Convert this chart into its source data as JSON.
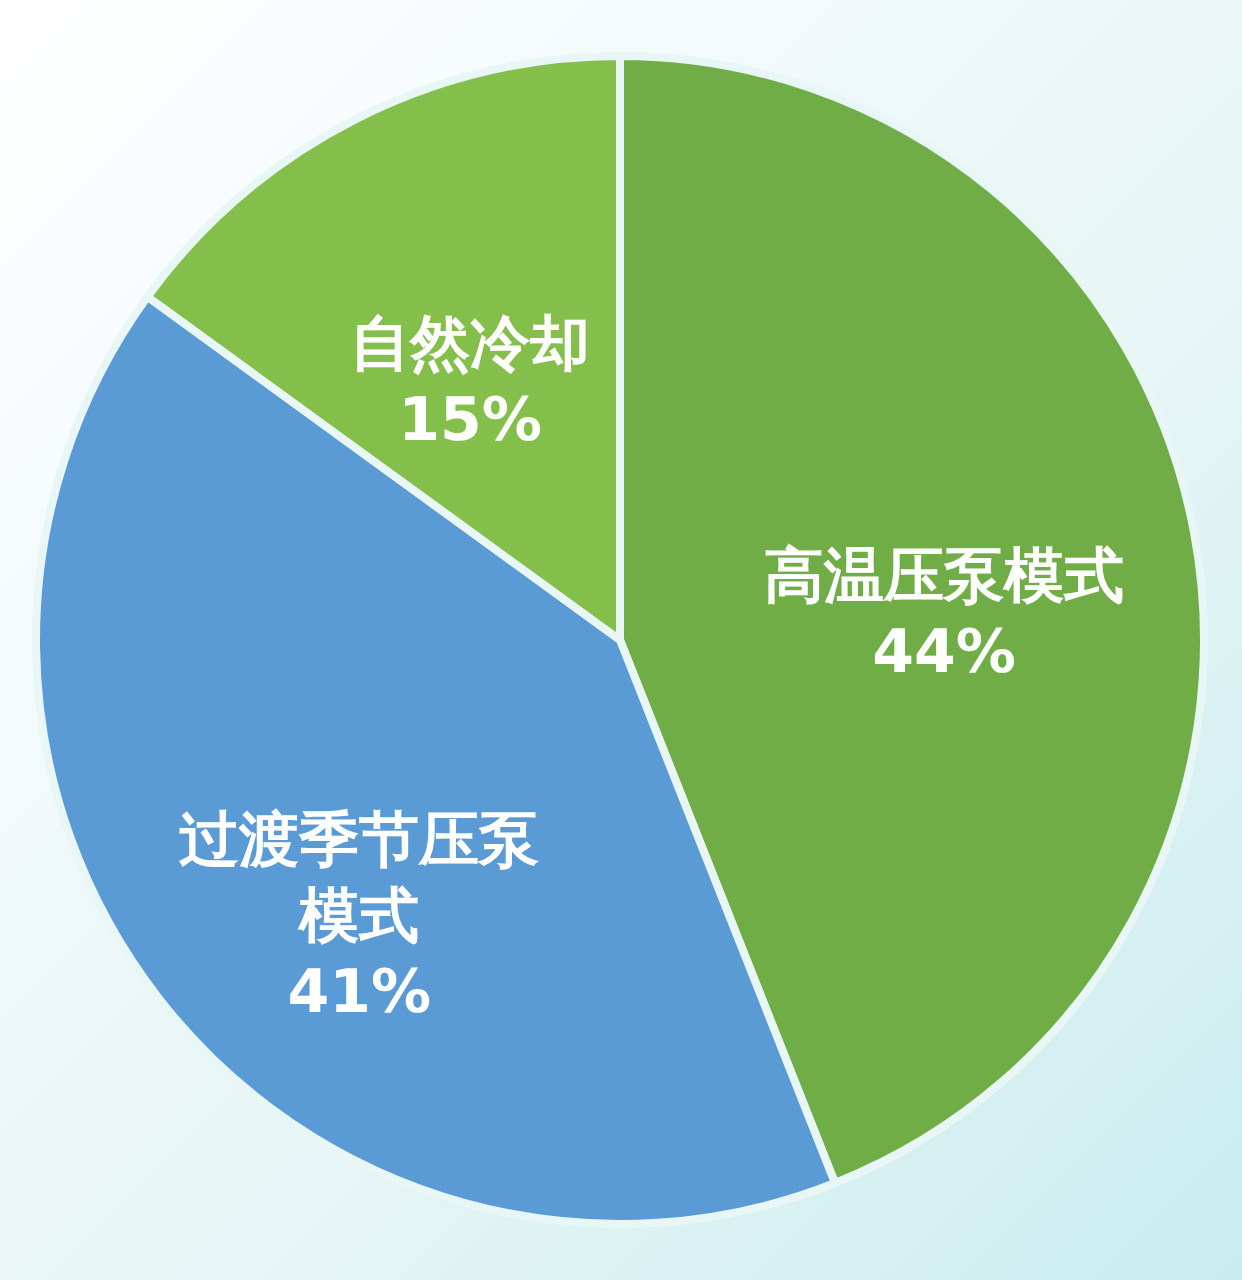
{
  "chart_data": {
    "type": "pie",
    "categories": [
      "高温压泵模式",
      "过渡季节压泵模式",
      "自然冷却"
    ],
    "values": [
      44,
      41,
      15
    ],
    "colors": [
      "#70ad47",
      "#5b9bd5",
      "#85bf4b"
    ],
    "value_labels": [
      "44%",
      "41%",
      "15%"
    ],
    "legend": false
  }
}
